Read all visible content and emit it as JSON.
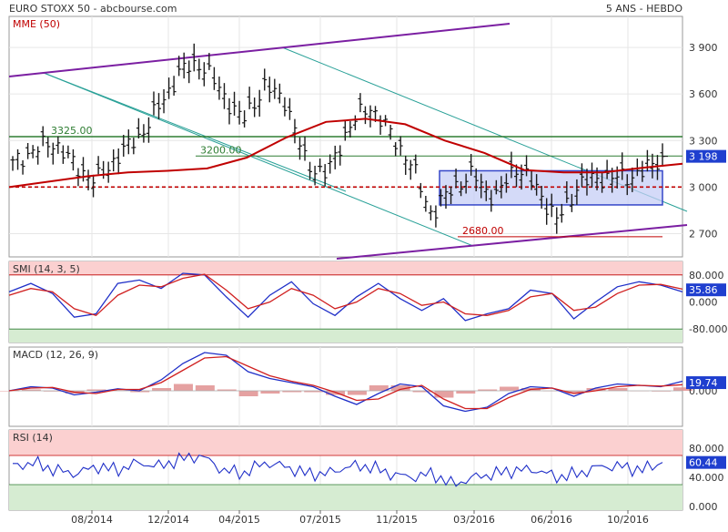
{
  "header": {
    "title": "EURO STOXX 50 - abcbourse.com",
    "period": "5 ANS - HEBDO"
  },
  "colors": {
    "price": "#1a1a1a",
    "mme": "#c00000",
    "trend": "#7b1fa2",
    "channel": "#2aa198",
    "level": "#2e7d32",
    "support": "#c00000",
    "box_fill": "#c5cdf5",
    "box_stroke": "#3546c8",
    "blue": "#1f2fc8",
    "red": "#d02020",
    "pink_zone": "#fbd0d0",
    "green_zone": "#d6ecd2",
    "hist": "#e09090",
    "label_bg": "#1f3fcf"
  },
  "chart_data": [
    {
      "type": "ohlc",
      "title": "EURO STOXX 50",
      "ylim": [
        2550,
        4100
      ],
      "y_ticks": [
        2700,
        3000,
        3300,
        3600,
        3900
      ],
      "y_tick_labels": [
        "2 700",
        "3 000",
        "3 300",
        "3 600",
        "3 900"
      ],
      "x_tick_labels": [
        "08/2014",
        "12/2014",
        "04/2015",
        "07/2015",
        "11/2015",
        "03/2016",
        "06/2016",
        "10/2016"
      ],
      "last_value_label": "3 198",
      "series": [
        {
          "name": "MME (50)",
          "values": [
            3000,
            3035,
            3070,
            3095,
            3105,
            3120,
            3190,
            3320,
            3420,
            3440,
            3405,
            3300,
            3220,
            3110,
            3095,
            3095,
            3125,
            3150
          ]
        }
      ],
      "price_anchors": [
        3150,
        3240,
        3290,
        3130,
        3040,
        3200,
        3320,
        3520,
        3750,
        3800,
        3600,
        3430,
        3650,
        3560,
        3150,
        3080,
        3380,
        3530,
        3350,
        3150,
        2820,
        3000,
        3080,
        2920,
        3140,
        2990,
        2780,
        3020,
        3060,
        3060,
        3090,
        3198
      ],
      "annotations": [
        {
          "label": "3325.00",
          "value": 3325,
          "role": "resistance"
        },
        {
          "label": "3200.00",
          "value": 3200,
          "role": "level"
        },
        {
          "label": "2680.00",
          "value": 2680,
          "role": "low"
        }
      ],
      "dashed_level": 3000,
      "range_box": {
        "from": "12/2015",
        "to": "12/2016",
        "low": 2885,
        "high": 3105
      }
    },
    {
      "type": "line",
      "title": "SMI (14, 3, 5)",
      "ylim": [
        -120,
        120
      ],
      "y_ticks": [
        80,
        0,
        -80
      ],
      "y_tick_labels": [
        "80.000",
        "0.000",
        "-80.000"
      ],
      "zones": [
        80,
        -80
      ],
      "last_value_label": "35.86",
      "series": [
        {
          "name": "SMI",
          "values": [
            30,
            55,
            25,
            -45,
            -35,
            55,
            65,
            40,
            85,
            80,
            15,
            -45,
            20,
            60,
            -5,
            -40,
            15,
            55,
            10,
            -25,
            10,
            -55,
            -35,
            -20,
            35,
            25,
            -50,
            0,
            45,
            60,
            50,
            30
          ]
        },
        {
          "name": "Signal",
          "values": [
            20,
            40,
            30,
            -20,
            -40,
            20,
            50,
            45,
            70,
            82,
            35,
            -20,
            0,
            40,
            20,
            -20,
            0,
            40,
            25,
            -10,
            0,
            -35,
            -40,
            -25,
            15,
            25,
            -25,
            -15,
            25,
            50,
            52,
            38
          ]
        }
      ]
    },
    {
      "type": "line",
      "title": "MACD (12, 26, 9)",
      "ylim": [
        -260,
        320
      ],
      "y_ticks": [
        0
      ],
      "y_tick_labels": [
        "0.000"
      ],
      "last_value_label": "19.74",
      "series": [
        {
          "name": "MACD",
          "values": [
            0,
            30,
            20,
            -30,
            -10,
            15,
            0,
            80,
            200,
            280,
            260,
            140,
            90,
            60,
            30,
            -40,
            -100,
            -20,
            50,
            30,
            -110,
            -150,
            -120,
            -20,
            30,
            20,
            -40,
            20,
            50,
            40,
            30,
            70
          ]
        },
        {
          "name": "Signal",
          "values": [
            0,
            20,
            25,
            -10,
            -20,
            10,
            10,
            60,
            150,
            240,
            250,
            180,
            110,
            70,
            40,
            -10,
            -70,
            -60,
            10,
            40,
            -60,
            -130,
            -130,
            -50,
            10,
            20,
            -20,
            0,
            30,
            40,
            35,
            45
          ]
        }
      ]
    },
    {
      "type": "line",
      "title": "RSI (14)",
      "ylim": [
        -5,
        105
      ],
      "y_ticks": [
        80,
        40,
        0
      ],
      "y_tick_labels": [
        "80.000",
        "40.000",
        "0.000"
      ],
      "zones": [
        70,
        30
      ],
      "last_value_label": "60.44",
      "series": [
        {
          "name": "RSI",
          "values": [
            55,
            60,
            50,
            45,
            55,
            50,
            60,
            55,
            65,
            70,
            50,
            45,
            60,
            55,
            45,
            45,
            55,
            55,
            45,
            40,
            45,
            30,
            40,
            45,
            50,
            50,
            40,
            45,
            55,
            55,
            50,
            60
          ]
        }
      ]
    }
  ]
}
